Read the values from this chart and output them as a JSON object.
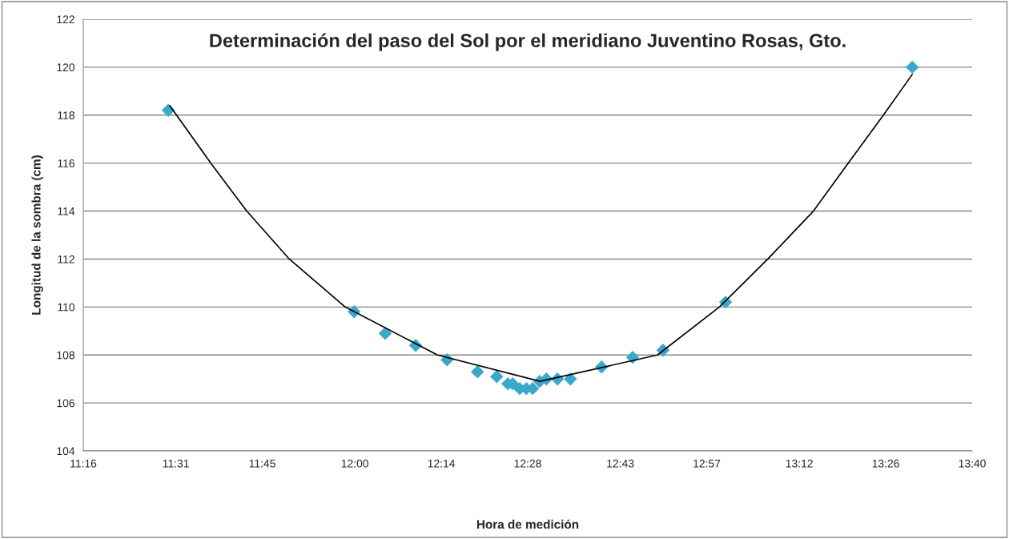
{
  "chart_data": {
    "type": "scatter",
    "title": "Determinación del paso del Sol por el meridiano Juventino Rosas, Gto.",
    "xlabel": "Hora de medición",
    "ylabel": "Longitud de la sombra (cm)",
    "xlim": [
      11.2667,
      13.6667
    ],
    "xticks": [
      {
        "value": 11.2667,
        "label": "11:16"
      },
      {
        "value": 11.5167,
        "label": "11:31"
      },
      {
        "value": 11.75,
        "label": "11:45"
      },
      {
        "value": 12.0,
        "label": "12:00"
      },
      {
        "value": 12.2333,
        "label": "12:14"
      },
      {
        "value": 12.4667,
        "label": "12:28"
      },
      {
        "value": 12.7167,
        "label": "12:43"
      },
      {
        "value": 12.95,
        "label": "12:57"
      },
      {
        "value": 13.2,
        "label": "13:12"
      },
      {
        "value": 13.4333,
        "label": "13:26"
      },
      {
        "value": 13.6667,
        "label": "13:40"
      }
    ],
    "ylim": [
      104,
      122
    ],
    "yticks": [
      104,
      106,
      108,
      110,
      112,
      114,
      116,
      118,
      120,
      122
    ],
    "grid": "y",
    "legend": false,
    "series": [
      {
        "marker": "diamond",
        "color": "#3aa8c8",
        "x": [
          11.496,
          11.998,
          12.082,
          12.164,
          12.249,
          12.331,
          12.383,
          12.413,
          12.426,
          12.445,
          12.463,
          12.48,
          12.499,
          12.517,
          12.547,
          12.582,
          12.666,
          12.75,
          12.832,
          13.001,
          13.505
        ],
        "values": [
          118.2,
          109.8,
          108.9,
          108.4,
          107.8,
          107.3,
          107.1,
          106.8,
          106.8,
          106.6,
          106.6,
          106.6,
          106.9,
          107.0,
          107.0,
          107.0,
          107.5,
          107.9,
          108.2,
          110.2,
          120.0
        ]
      },
      {
        "type": "line",
        "marker": "none",
        "line_style": "solid",
        "color": "#000000",
        "x": [
          11.5,
          11.611,
          11.708,
          11.823,
          11.974,
          12.223,
          12.5,
          12.817,
          12.984,
          13.115,
          13.238,
          13.332,
          13.427,
          13.505
        ],
        "values": [
          118.4,
          116,
          114,
          112,
          110,
          108,
          106.9,
          108,
          110,
          112,
          114,
          116,
          118,
          119.7
        ]
      }
    ]
  }
}
